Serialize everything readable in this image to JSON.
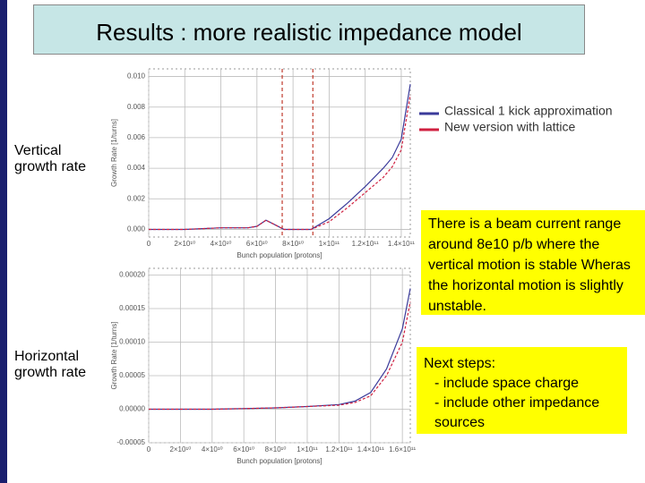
{
  "slide_title": "Results : more realistic impedance model",
  "side_labels": [
    "Vertical growth rate",
    "Horizontal growth rate"
  ],
  "note_box": "There is a beam current range around 8e10 p/b where the vertical motion is stable Wheras the horizontal motion is slightly unstable.",
  "next_steps": {
    "heading": "Next steps:",
    "items": [
      "- include space charge",
      "- include other impedance sources"
    ]
  },
  "chart_data": [
    {
      "type": "line",
      "xlabel": "Bunch population [protons]",
      "ylabel": "Growth Rate [1/turns]",
      "x": [
        0,
        20000000000,
        40000000000,
        55000000000,
        60000000000,
        65000000000,
        70000000000,
        75000000000,
        80000000000,
        90000000000,
        100000000000,
        110000000000,
        120000000000,
        130000000000,
        135000000000,
        140000000000,
        145000000000
      ],
      "series": [
        {
          "name": "Classical 1 kick approximation",
          "color": "#3a3a9a",
          "values": [
            0,
            0,
            0.0001,
            0.0001,
            0.0002,
            0.0006,
            0.0003,
            0,
            0,
            0,
            0.0007,
            0.0017,
            0.0028,
            0.004,
            0.0047,
            0.0059,
            0.0095
          ]
        },
        {
          "name": "New version with lattice",
          "color": "#d02040",
          "values": [
            0,
            0,
            0.0001,
            0.0001,
            0.0002,
            0.0006,
            0.0003,
            0,
            0,
            0,
            0.0005,
            0.0014,
            0.0024,
            0.0034,
            0.0041,
            0.0052,
            0.0088
          ]
        }
      ],
      "xlim": [
        0,
        145000000000
      ],
      "ylim": [
        -0.0005,
        0.0105
      ],
      "xticks": [
        0,
        {
          "value": 20000000000,
          "label": "2×10¹⁰"
        },
        {
          "value": 40000000000,
          "label": "4×10¹⁰"
        },
        {
          "value": 60000000000,
          "label": "6×10¹⁰"
        },
        {
          "value": 80000000000,
          "label": "8×10¹⁰"
        },
        {
          "value": 100000000000,
          "label": "1×10¹¹"
        },
        {
          "value": 120000000000,
          "label": "1.2×10¹¹"
        },
        {
          "value": 140000000000,
          "label": "1.4×10¹¹"
        }
      ],
      "yticks": [
        {
          "value": 0,
          "label": "0.000"
        },
        {
          "value": 0.002,
          "label": "0.002"
        },
        {
          "value": 0.004,
          "label": "0.004"
        },
        {
          "value": 0.006,
          "label": "0.006"
        },
        {
          "value": 0.008,
          "label": "0.008"
        },
        {
          "value": 0.01,
          "label": "0.010"
        }
      ],
      "vlines": {
        "color": "#c0392b",
        "values": [
          74000000000,
          91000000000
        ]
      },
      "grid": true,
      "legend": "upper right"
    },
    {
      "type": "line",
      "xlabel": "Bunch population [protons]",
      "ylabel": "Growth Rate [1/turns]",
      "x": [
        0,
        20000000000,
        40000000000,
        60000000000,
        80000000000,
        100000000000,
        120000000000,
        130000000000,
        140000000000,
        150000000000,
        160000000000,
        165000000000
      ],
      "series": [
        {
          "color": "#3a3a9a",
          "values": [
            0,
            0,
            0,
            1e-06,
            2e-06,
            4e-06,
            7e-06,
            1.2e-05,
            2.5e-05,
            6e-05,
            0.00012,
            0.00018
          ]
        },
        {
          "color": "#d02040",
          "values": [
            0,
            0,
            0,
            1e-06,
            2e-06,
            4e-06,
            6e-06,
            1e-05,
            2e-05,
            5e-05,
            0.0001,
            0.00016
          ]
        }
      ],
      "xlim": [
        0,
        165000000000
      ],
      "ylim": [
        -5e-05,
        0.00021
      ],
      "xticks": [
        0,
        {
          "value": 20000000000,
          "label": "2×10¹⁰"
        },
        {
          "value": 40000000000,
          "label": "4×10¹⁰"
        },
        {
          "value": 60000000000,
          "label": "6×10¹⁰"
        },
        {
          "value": 80000000000,
          "label": "8×10¹⁰"
        },
        {
          "value": 100000000000,
          "label": "1×10¹¹"
        },
        {
          "value": 120000000000,
          "label": "1.2×10¹¹"
        },
        {
          "value": 140000000000,
          "label": "1.4×10¹¹"
        },
        {
          "value": 160000000000,
          "label": "1.6×10¹¹"
        }
      ],
      "yticks": [
        {
          "value": -5e-05,
          "label": "-0.00005"
        },
        {
          "value": 0,
          "label": "0.00000"
        },
        {
          "value": 5e-05,
          "label": "0.00005"
        },
        {
          "value": 0.0001,
          "label": "0.00010"
        },
        {
          "value": 0.00015,
          "label": "0.00015"
        },
        {
          "value": 0.0002,
          "label": "0.00020"
        }
      ],
      "grid": true
    }
  ]
}
